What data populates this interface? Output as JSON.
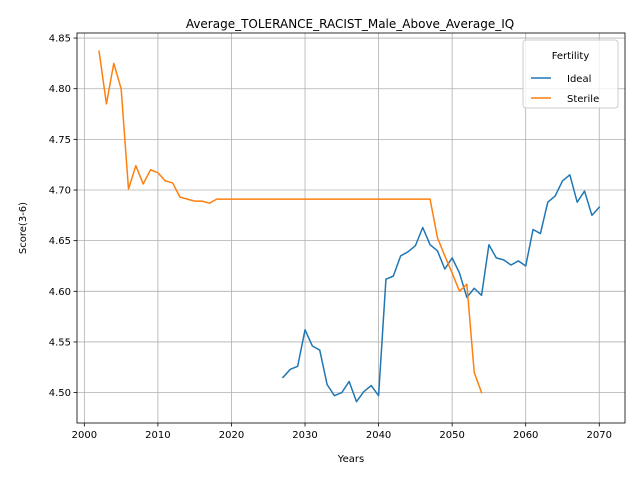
{
  "chart_data": {
    "type": "line",
    "title": "Average_TOLERANCE_RACIST_Male_Above_Average_IQ",
    "xlabel": "Years",
    "ylabel": "Score(3-6)",
    "xlim": [
      1999,
      2073.5
    ],
    "ylim": [
      4.47,
      4.855
    ],
    "xticks": [
      2000,
      2010,
      2020,
      2030,
      2040,
      2050,
      2060,
      2070
    ],
    "yticks": [
      4.5,
      4.55,
      4.6,
      4.65,
      4.7,
      4.75,
      4.8,
      4.85
    ],
    "ytick_labels": [
      "4.50",
      "4.55",
      "4.60",
      "4.65",
      "4.70",
      "4.75",
      "4.80",
      "4.85"
    ],
    "grid": true,
    "legend": {
      "title": "Fertility",
      "placement": "top-right"
    },
    "series": [
      {
        "name": "Ideal",
        "color": "#1f77b4",
        "x": [
          2027,
          2028,
          2029,
          2030,
          2031,
          2032,
          2033,
          2034,
          2035,
          2036,
          2037,
          2038,
          2039,
          2040,
          2041,
          2042,
          2043,
          2044,
          2045,
          2046,
          2047,
          2048,
          2049,
          2050,
          2051,
          2052,
          2053,
          2054,
          2055,
          2056,
          2057,
          2058,
          2059,
          2060,
          2061,
          2062,
          2063,
          2064,
          2065,
          2066,
          2067,
          2068,
          2069,
          2070
        ],
        "y": [
          4.515,
          4.523,
          4.526,
          4.562,
          4.546,
          4.542,
          4.508,
          4.497,
          4.5,
          4.511,
          4.491,
          4.501,
          4.507,
          4.497,
          4.612,
          4.615,
          4.635,
          4.639,
          4.645,
          4.663,
          4.646,
          4.64,
          4.622,
          4.633,
          4.618,
          4.594,
          4.603,
          4.596,
          4.646,
          4.633,
          4.631,
          4.626,
          4.63,
          4.625,
          4.661,
          4.657,
          4.688,
          4.694,
          4.709,
          4.715,
          4.688,
          4.699,
          4.675,
          4.683
        ]
      },
      {
        "name": "Sterile",
        "color": "#ff7f0e",
        "x": [
          2002,
          2003,
          2004,
          2005,
          2006,
          2007,
          2008,
          2009,
          2010,
          2011,
          2012,
          2013,
          2014,
          2015,
          2016,
          2017,
          2018,
          2019,
          2020,
          2021,
          2022,
          2023,
          2024,
          2025,
          2026,
          2027,
          2028,
          2029,
          2030,
          2031,
          2032,
          2033,
          2034,
          2035,
          2036,
          2037,
          2038,
          2039,
          2040,
          2041,
          2042,
          2043,
          2044,
          2045,
          2046,
          2047,
          2048,
          2049,
          2050,
          2051,
          2052,
          2053,
          2054
        ],
        "y": [
          4.837,
          4.785,
          4.825,
          4.8,
          4.701,
          4.724,
          4.706,
          4.72,
          4.717,
          4.709,
          4.707,
          4.693,
          4.691,
          4.689,
          4.689,
          4.687,
          4.691,
          4.691,
          4.691,
          4.691,
          4.691,
          4.691,
          4.691,
          4.691,
          4.691,
          4.691,
          4.691,
          4.691,
          4.691,
          4.691,
          4.691,
          4.691,
          4.691,
          4.691,
          4.691,
          4.691,
          4.691,
          4.691,
          4.691,
          4.691,
          4.691,
          4.691,
          4.691,
          4.691,
          4.691,
          4.691,
          4.653,
          4.635,
          4.618,
          4.6,
          4.607,
          4.52,
          4.5
        ]
      }
    ]
  }
}
